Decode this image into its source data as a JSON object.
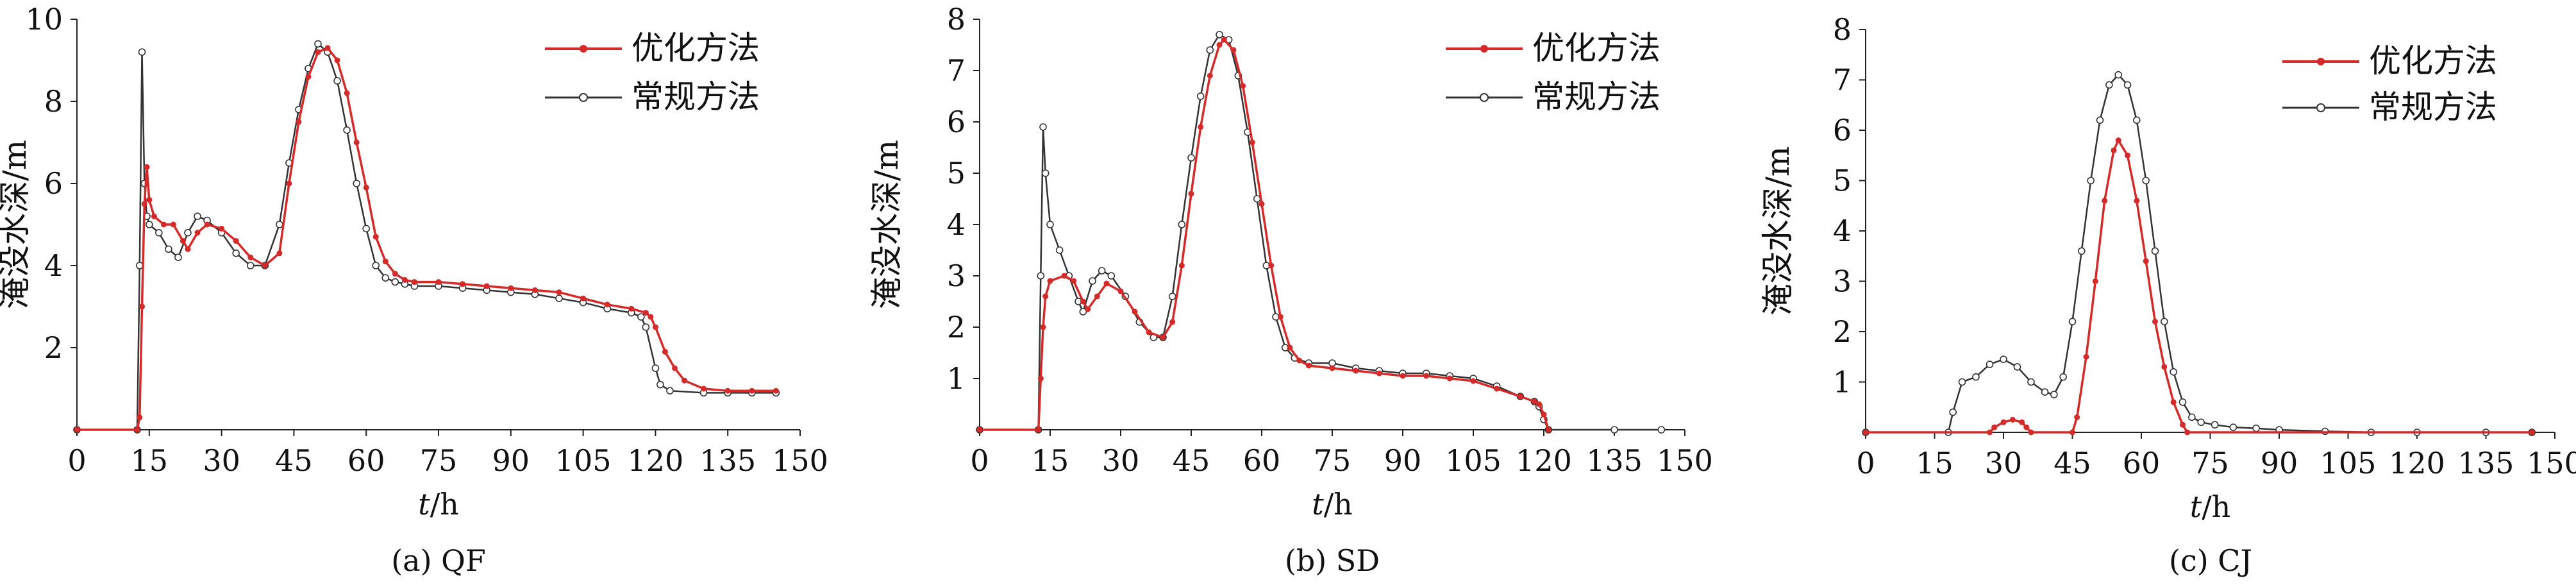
{
  "chart_data": [
    {
      "type": "line",
      "caption": "(a) QF",
      "xlabel_italic": "t",
      "xlabel_unit": "/h",
      "ylabel": "淹没水深/m",
      "xlim": [
        0,
        150
      ],
      "ylim": [
        0,
        10
      ],
      "xticks": [
        0,
        15,
        30,
        45,
        60,
        75,
        90,
        105,
        120,
        135,
        150
      ],
      "yticks": [
        2,
        4,
        6,
        8,
        10
      ],
      "legend_position": "top-right",
      "series": [
        {
          "name": "优化方法",
          "color": "#d42a2a",
          "points": [
            [
              0,
              0
            ],
            [
              12.5,
              0
            ],
            [
              13,
              0.3
            ],
            [
              13.5,
              3
            ],
            [
              14,
              5.5
            ],
            [
              14.5,
              6.4
            ],
            [
              15,
              5.6
            ],
            [
              16,
              5.2
            ],
            [
              18,
              5
            ],
            [
              20,
              5
            ],
            [
              22,
              4.6
            ],
            [
              23,
              4.4
            ],
            [
              25,
              4.8
            ],
            [
              27,
              5
            ],
            [
              30,
              4.9
            ],
            [
              33,
              4.6
            ],
            [
              36,
              4.2
            ],
            [
              39,
              4
            ],
            [
              42,
              4.3
            ],
            [
              44,
              6
            ],
            [
              46,
              7.5
            ],
            [
              48,
              8.6
            ],
            [
              50,
              9.2
            ],
            [
              52,
              9.3
            ],
            [
              54,
              9
            ],
            [
              56,
              8.2
            ],
            [
              58,
              7
            ],
            [
              60,
              5.9
            ],
            [
              62,
              4.7
            ],
            [
              64,
              4.1
            ],
            [
              66,
              3.8
            ],
            [
              68,
              3.65
            ],
            [
              70,
              3.6
            ],
            [
              75,
              3.6
            ],
            [
              80,
              3.55
            ],
            [
              85,
              3.5
            ],
            [
              90,
              3.45
            ],
            [
              95,
              3.4
            ],
            [
              100,
              3.35
            ],
            [
              105,
              3.2
            ],
            [
              110,
              3.05
            ],
            [
              115,
              2.95
            ],
            [
              118,
              2.85
            ],
            [
              119,
              2.75
            ],
            [
              120,
              2.5
            ],
            [
              122,
              1.9
            ],
            [
              124,
              1.5
            ],
            [
              126,
              1.2
            ],
            [
              130,
              1
            ],
            [
              135,
              0.95
            ],
            [
              140,
              0.95
            ],
            [
              145,
              0.95
            ]
          ]
        },
        {
          "name": "常规方法",
          "color": "#333333",
          "points": [
            [
              0,
              0
            ],
            [
              12.5,
              0
            ],
            [
              13,
              4
            ],
            [
              13.5,
              9.2
            ],
            [
              14,
              6
            ],
            [
              14.5,
              5.2
            ],
            [
              15,
              5
            ],
            [
              17,
              4.8
            ],
            [
              19,
              4.4
            ],
            [
              21,
              4.2
            ],
            [
              23,
              4.8
            ],
            [
              25,
              5.2
            ],
            [
              27,
              5.1
            ],
            [
              30,
              4.8
            ],
            [
              33,
              4.3
            ],
            [
              36,
              4
            ],
            [
              39,
              4
            ],
            [
              42,
              5
            ],
            [
              44,
              6.5
            ],
            [
              46,
              7.8
            ],
            [
              48,
              8.8
            ],
            [
              50,
              9.4
            ],
            [
              52,
              9.2
            ],
            [
              54,
              8.5
            ],
            [
              56,
              7.3
            ],
            [
              58,
              6
            ],
            [
              60,
              4.9
            ],
            [
              62,
              4
            ],
            [
              64,
              3.7
            ],
            [
              66,
              3.6
            ],
            [
              68,
              3.55
            ],
            [
              70,
              3.5
            ],
            [
              75,
              3.5
            ],
            [
              80,
              3.45
            ],
            [
              85,
              3.4
            ],
            [
              90,
              3.35
            ],
            [
              95,
              3.3
            ],
            [
              100,
              3.2
            ],
            [
              105,
              3.1
            ],
            [
              110,
              2.95
            ],
            [
              115,
              2.85
            ],
            [
              117,
              2.75
            ],
            [
              118,
              2.5
            ],
            [
              120,
              1.5
            ],
            [
              121,
              1.1
            ],
            [
              123,
              0.95
            ],
            [
              130,
              0.9
            ],
            [
              135,
              0.9
            ],
            [
              140,
              0.9
            ],
            [
              145,
              0.9
            ]
          ]
        }
      ]
    },
    {
      "type": "line",
      "caption": "(b) SD",
      "xlabel_italic": "t",
      "xlabel_unit": "/h",
      "ylabel": "淹没水深/m",
      "xlim": [
        0,
        150
      ],
      "ylim": [
        0,
        8
      ],
      "xticks": [
        0,
        15,
        30,
        45,
        60,
        75,
        90,
        105,
        120,
        135,
        150
      ],
      "yticks": [
        1,
        2,
        3,
        4,
        5,
        6,
        7,
        8
      ],
      "legend_position": "top-right",
      "series": [
        {
          "name": "优化方法",
          "color": "#d42a2a",
          "points": [
            [
              0,
              0
            ],
            [
              12.5,
              0
            ],
            [
              13,
              1
            ],
            [
              13.5,
              2
            ],
            [
              14,
              2.6
            ],
            [
              15,
              2.9
            ],
            [
              18,
              3
            ],
            [
              20,
              2.9
            ],
            [
              22,
              2.5
            ],
            [
              23,
              2.35
            ],
            [
              25,
              2.6
            ],
            [
              27,
              2.85
            ],
            [
              30,
              2.7
            ],
            [
              33,
              2.3
            ],
            [
              36,
              1.9
            ],
            [
              39,
              1.8
            ],
            [
              41,
              2.1
            ],
            [
              43,
              3.2
            ],
            [
              45,
              4.6
            ],
            [
              47,
              5.9
            ],
            [
              49,
              6.9
            ],
            [
              51,
              7.5
            ],
            [
              52,
              7.6
            ],
            [
              54,
              7.4
            ],
            [
              56,
              6.7
            ],
            [
              58,
              5.6
            ],
            [
              60,
              4.4
            ],
            [
              62,
              3.2
            ],
            [
              64,
              2.2
            ],
            [
              66,
              1.6
            ],
            [
              68,
              1.35
            ],
            [
              70,
              1.25
            ],
            [
              75,
              1.2
            ],
            [
              80,
              1.15
            ],
            [
              85,
              1.1
            ],
            [
              90,
              1.05
            ],
            [
              95,
              1.05
            ],
            [
              100,
              1
            ],
            [
              105,
              0.95
            ],
            [
              110,
              0.8
            ],
            [
              115,
              0.65
            ],
            [
              118,
              0.55
            ],
            [
              119,
              0.5
            ],
            [
              120,
              0.3
            ],
            [
              121,
              0
            ]
          ]
        },
        {
          "name": "常规方法",
          "color": "#333333",
          "points": [
            [
              0,
              0
            ],
            [
              12.5,
              0
            ],
            [
              13,
              3
            ],
            [
              13.5,
              5.9
            ],
            [
              14,
              5
            ],
            [
              15,
              4
            ],
            [
              17,
              3.5
            ],
            [
              19,
              3
            ],
            [
              21,
              2.5
            ],
            [
              22,
              2.3
            ],
            [
              24,
              2.9
            ],
            [
              26,
              3.1
            ],
            [
              28,
              3
            ],
            [
              31,
              2.6
            ],
            [
              34,
              2.1
            ],
            [
              37,
              1.8
            ],
            [
              39,
              1.8
            ],
            [
              41,
              2.6
            ],
            [
              43,
              4
            ],
            [
              45,
              5.3
            ],
            [
              47,
              6.5
            ],
            [
              49,
              7.4
            ],
            [
              51,
              7.7
            ],
            [
              53,
              7.6
            ],
            [
              55,
              6.9
            ],
            [
              57,
              5.8
            ],
            [
              59,
              4.5
            ],
            [
              61,
              3.2
            ],
            [
              63,
              2.2
            ],
            [
              65,
              1.6
            ],
            [
              67,
              1.4
            ],
            [
              70,
              1.3
            ],
            [
              75,
              1.3
            ],
            [
              80,
              1.2
            ],
            [
              85,
              1.15
            ],
            [
              90,
              1.1
            ],
            [
              95,
              1.1
            ],
            [
              100,
              1.05
            ],
            [
              105,
              1
            ],
            [
              110,
              0.85
            ],
            [
              115,
              0.65
            ],
            [
              118,
              0.55
            ],
            [
              119,
              0.45
            ],
            [
              120,
              0.2
            ],
            [
              121,
              0
            ],
            [
              135,
              0
            ],
            [
              145,
              0
            ]
          ]
        }
      ]
    },
    {
      "type": "line",
      "caption": "(c) CJ",
      "xlabel_italic": "t",
      "xlabel_unit": "/h",
      "ylabel": "淹没水深/m",
      "xlim": [
        0,
        150
      ],
      "ylim": [
        0,
        8
      ],
      "xticks": [
        0,
        15,
        30,
        45,
        60,
        75,
        90,
        105,
        120,
        135,
        150
      ],
      "yticks": [
        1,
        2,
        3,
        4,
        5,
        6,
        7,
        8
      ],
      "legend_position": "top-right",
      "series": [
        {
          "name": "优化方法",
          "color": "#d42a2a",
          "points": [
            [
              0,
              0
            ],
            [
              27,
              0
            ],
            [
              28,
              0.1
            ],
            [
              30,
              0.2
            ],
            [
              32,
              0.25
            ],
            [
              34,
              0.2
            ],
            [
              35,
              0.1
            ],
            [
              36,
              0
            ],
            [
              45,
              0
            ],
            [
              46,
              0.3
            ],
            [
              48,
              1.5
            ],
            [
              50,
              3
            ],
            [
              52,
              4.6
            ],
            [
              54,
              5.6
            ],
            [
              55,
              5.8
            ],
            [
              57,
              5.5
            ],
            [
              59,
              4.6
            ],
            [
              61,
              3.4
            ],
            [
              63,
              2.2
            ],
            [
              65,
              1.3
            ],
            [
              67,
              0.6
            ],
            [
              69,
              0.15
            ],
            [
              70,
              0
            ],
            [
              145,
              0
            ]
          ]
        },
        {
          "name": "常规方法",
          "color": "#333333",
          "points": [
            [
              0,
              0
            ],
            [
              18,
              0
            ],
            [
              19,
              0.4
            ],
            [
              21,
              1
            ],
            [
              24,
              1.1
            ],
            [
              27,
              1.35
            ],
            [
              30,
              1.45
            ],
            [
              33,
              1.3
            ],
            [
              36,
              1
            ],
            [
              39,
              0.8
            ],
            [
              41,
              0.75
            ],
            [
              43,
              1.1
            ],
            [
              45,
              2.2
            ],
            [
              47,
              3.6
            ],
            [
              49,
              5
            ],
            [
              51,
              6.2
            ],
            [
              53,
              6.9
            ],
            [
              55,
              7.1
            ],
            [
              57,
              6.9
            ],
            [
              59,
              6.2
            ],
            [
              61,
              5
            ],
            [
              63,
              3.6
            ],
            [
              65,
              2.2
            ],
            [
              67,
              1.2
            ],
            [
              69,
              0.6
            ],
            [
              71,
              0.3
            ],
            [
              73,
              0.2
            ],
            [
              76,
              0.15
            ],
            [
              80,
              0.1
            ],
            [
              85,
              0.08
            ],
            [
              90,
              0.05
            ],
            [
              100,
              0.02
            ],
            [
              110,
              0
            ],
            [
              120,
              0
            ],
            [
              135,
              0
            ],
            [
              145,
              0
            ]
          ]
        }
      ]
    }
  ]
}
